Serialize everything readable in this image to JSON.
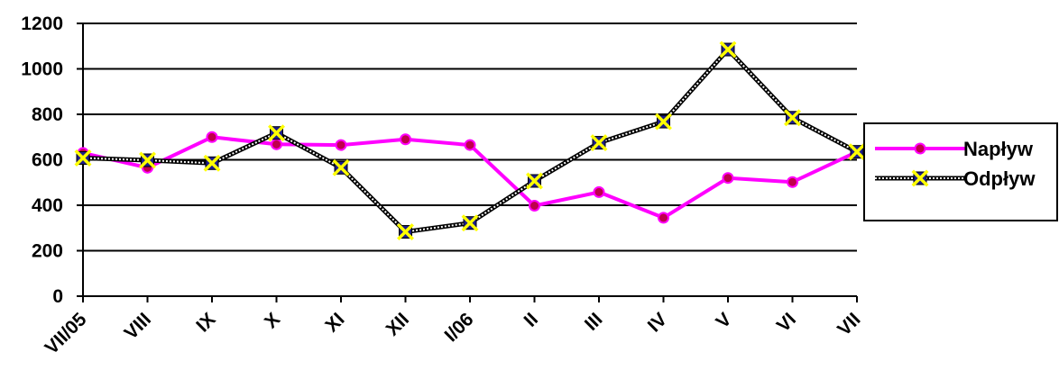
{
  "chart_data": {
    "type": "line",
    "title": "",
    "xlabel": "",
    "ylabel": "",
    "categories": [
      "VII/05",
      "VIII",
      "IX",
      "X",
      "XI",
      "XII",
      "I/06",
      "II",
      "III",
      "IV",
      "V",
      "VI",
      "VII"
    ],
    "ylim": [
      0,
      1200
    ],
    "yticks": [
      0,
      200,
      400,
      600,
      800,
      1000,
      1200
    ],
    "grid": "horizontal",
    "legend": "right",
    "series": [
      {
        "name": "Napływ",
        "color": "#ff00ff",
        "marker": "circle",
        "marker_color": "#c0004c",
        "values": [
          630,
          565,
          700,
          668,
          665,
          690,
          665,
          398,
          458,
          345,
          520,
          502,
          635
        ]
      },
      {
        "name": "Odpływ",
        "color": "#000000",
        "line_style": "dotted-double",
        "marker": "square-x",
        "marker_color": "#ffff00",
        "values": [
          608,
          598,
          585,
          718,
          565,
          283,
          322,
          507,
          675,
          768,
          1085,
          785,
          635
        ]
      }
    ]
  }
}
